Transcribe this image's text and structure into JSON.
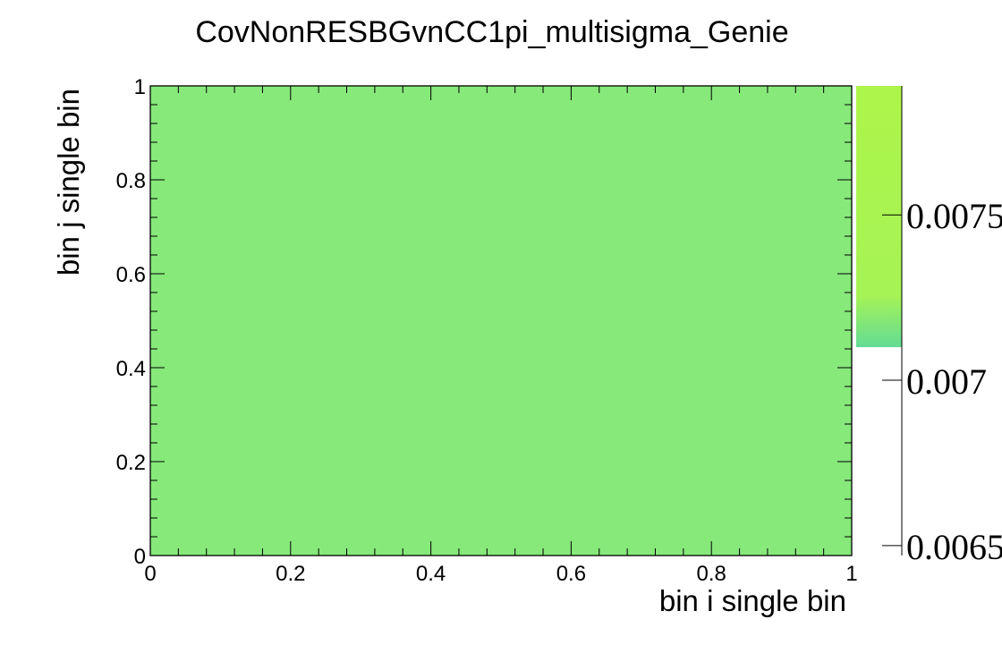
{
  "chart_data": {
    "type": "heatmap",
    "title": "CovNonRESBGvnCC1pi_multisigma_Genie",
    "xlabel": "bin i single bin",
    "ylabel": "bin j single bin",
    "xlim": [
      0,
      1
    ],
    "ylim": [
      0,
      1
    ],
    "x_ticks": [
      "0",
      "0.2",
      "0.4",
      "0.6",
      "0.8",
      "1"
    ],
    "y_ticks": [
      "0",
      "0.2",
      "0.4",
      "0.6",
      "0.8",
      "1"
    ],
    "cells": [
      {
        "x_range": [
          0,
          1
        ],
        "y_range": [
          0,
          1
        ],
        "value": 0.00718
      }
    ],
    "colorbar": {
      "range": [
        0.00647,
        0.00789
      ],
      "ticks": [
        "0.0065",
        "0.007",
        "0.0075"
      ],
      "filled_range": [
        0.0071,
        0.00789
      ]
    },
    "grid": false,
    "colors": {
      "cell_fill": "#86e97a",
      "colorbar_top": "#adf54a",
      "colorbar_mid": "#a6f355",
      "colorbar_bottom": "#63dc94"
    }
  }
}
